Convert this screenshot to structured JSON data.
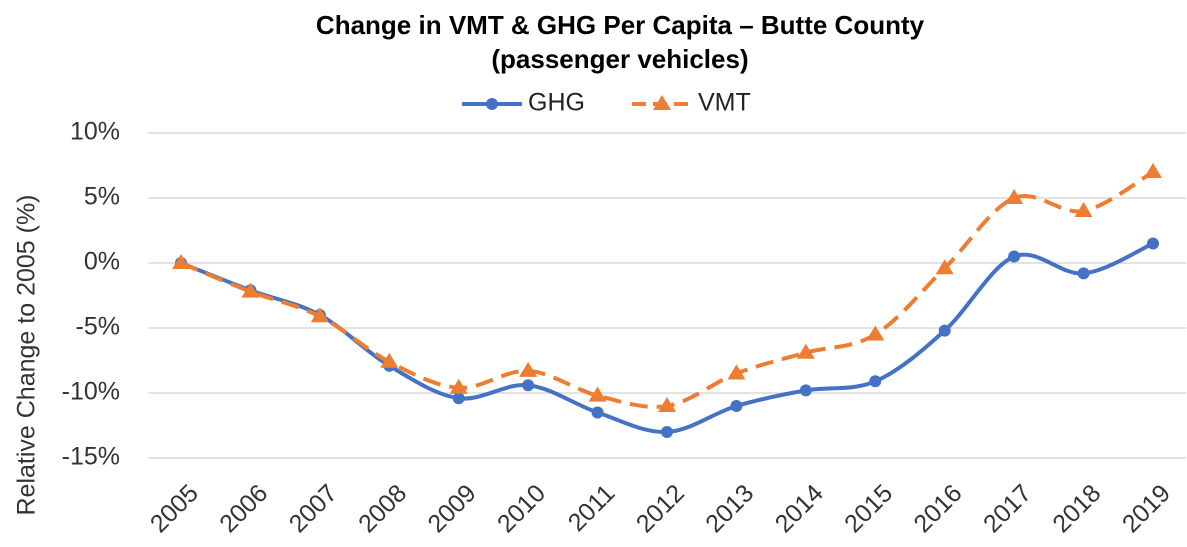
{
  "chart_data": {
    "type": "line",
    "title": "Change in VMT & GHG Per Capita – Butte County",
    "subtitle": "(passenger vehicles)",
    "y_label": "Relative Change to 2005 (%)",
    "categories": [
      "2005",
      "2006",
      "2007",
      "2008",
      "2009",
      "2010",
      "2011",
      "2012",
      "2013",
      "2014",
      "2015",
      "2016",
      "2017",
      "2018",
      "2019"
    ],
    "series": [
      {
        "name": "GHG",
        "color": "#4472c4",
        "marker": "circle",
        "dashed": false,
        "values": [
          0,
          -2.1,
          -4.0,
          -7.9,
          -10.4,
          -9.4,
          -11.5,
          -13.0,
          -11.0,
          -9.8,
          -9.1,
          -5.2,
          0.5,
          -0.8,
          1.5
        ]
      },
      {
        "name": "VMT",
        "color": "#ed7d31",
        "marker": "triangle",
        "dashed": true,
        "values": [
          0,
          -2.2,
          -4.1,
          -7.6,
          -9.6,
          -8.3,
          -10.2,
          -11.0,
          -8.5,
          -6.9,
          -5.5,
          -0.4,
          5.0,
          4.0,
          7.0
        ]
      }
    ],
    "ylim": [
      -15,
      10
    ],
    "yticks": [
      {
        "value": -15,
        "label": "-15%"
      },
      {
        "value": -10,
        "label": "-10%"
      },
      {
        "value": -5,
        "label": "-5%"
      },
      {
        "value": 0,
        "label": "0%"
      },
      {
        "value": 5,
        "label": "5%"
      },
      {
        "value": 10,
        "label": "10%"
      }
    ],
    "grid": true,
    "legend": "top"
  }
}
